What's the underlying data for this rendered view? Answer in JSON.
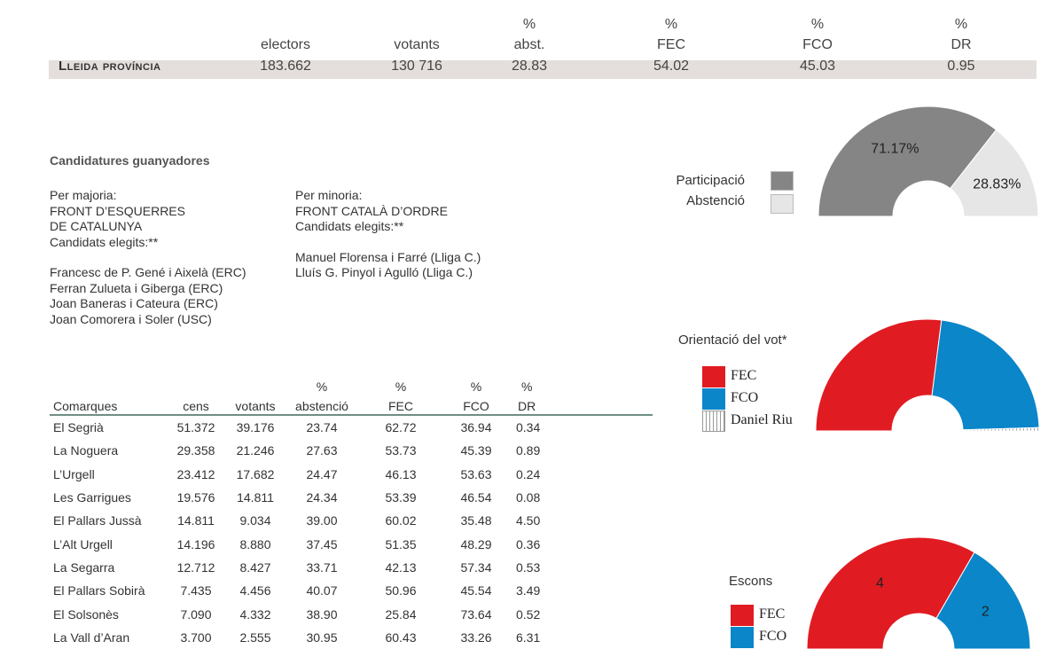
{
  "summary": {
    "title": "Lleida província",
    "columns": [
      {
        "pct": "",
        "label": "electors",
        "value": "183.662"
      },
      {
        "pct": "",
        "label": "votants",
        "value": "130 716"
      },
      {
        "pct": "%",
        "label": "abst.",
        "value": "28.83"
      },
      {
        "pct": "%",
        "label": "FEC",
        "value": "54.02"
      },
      {
        "pct": "%",
        "label": "FCO",
        "value": "45.03"
      },
      {
        "pct": "%",
        "label": "DR",
        "value": "0.95"
      }
    ]
  },
  "winners": {
    "title": "Candidatures guanyadores",
    "majority": {
      "heading": "Per majoria:",
      "party_line1": "FRONT D’ESQUERRES",
      "party_line2": "DE CATALUNYA",
      "elected_label": "Candidats elegits:**",
      "candidates": [
        "Francesc de P. Gené i Aixelà (ERC)",
        "Ferran Zulueta i Giberga (ERC)",
        "Joan Baneras i Cateura (ERC)",
        "Joan Comorera i Soler (USC)"
      ]
    },
    "minority": {
      "heading": "Per minoria:",
      "party_line1": "FRONT CATALÀ D’ORDRE",
      "elected_label": "Candidats elegits:**",
      "candidates": [
        "Manuel Florensa i Farré (Lliga C.)",
        "Lluís G. Pinyol i Agulló (Lliga C.)"
      ]
    }
  },
  "table": {
    "pct_headers": [
      "",
      "",
      "",
      "%",
      "%",
      "%",
      "%"
    ],
    "headers": [
      "Comarques",
      "cens",
      "votants",
      "abstenció",
      "FEC",
      "FCO",
      "DR"
    ],
    "rows": [
      [
        "El Segrià",
        "51.372",
        "39.176",
        "23.74",
        "62.72",
        "36.94",
        "0.34"
      ],
      [
        "La Noguera",
        "29.358",
        "21.246",
        "27.63",
        "53.73",
        "45.39",
        "0.89"
      ],
      [
        "L’Urgell",
        "23.412",
        "17.682",
        "24.47",
        "46.13",
        "53.63",
        "0.24"
      ],
      [
        "Les Garrigues",
        "19.576",
        "14.811",
        "24.34",
        "53.39",
        "46.54",
        "0.08"
      ],
      [
        "El Pallars Jussà",
        "14.811",
        "9.034",
        "39.00",
        "60.02",
        "35.48",
        "4.50"
      ],
      [
        "L’Alt Urgell",
        "14.196",
        "8.880",
        "37.45",
        "51.35",
        "48.29",
        "0.36"
      ],
      [
        "La Segarra",
        "12.712",
        "8.427",
        "33.71",
        "42.13",
        "57.34",
        "0.53"
      ],
      [
        "El Pallars Sobirà",
        "7.435",
        "4.456",
        "40.07",
        "50.96",
        "45.54",
        "3.49"
      ],
      [
        "El Solsonès",
        "7.090",
        "4.332",
        "38.90",
        "25.84",
        "73.64",
        "0.52"
      ],
      [
        "La Vall d’Aran",
        "3.700",
        "2.555",
        "30.95",
        "60.43",
        "33.26",
        "6.31"
      ]
    ]
  },
  "colors": {
    "participation": "#858585",
    "abstention": "#e6e6e6",
    "fec": "#e11b22",
    "fco": "#0a86c9",
    "dr_stripe": "#999999"
  },
  "chart_data": [
    {
      "type": "pie",
      "title": "",
      "legend": [
        "Participació",
        "Abstenció"
      ],
      "categories": [
        "Participació",
        "Abstenció"
      ],
      "values": [
        71.17,
        28.83
      ],
      "data_labels": [
        "71.17%",
        "28.83%"
      ],
      "shape": "half-donut"
    },
    {
      "type": "pie",
      "title": "Orientació del vot*",
      "legend": [
        "FEC",
        "FCO",
        "Daniel Riu"
      ],
      "categories": [
        "FEC",
        "FCO",
        "Daniel Riu"
      ],
      "values": [
        54.02,
        45.03,
        0.95
      ],
      "shape": "half-donut"
    },
    {
      "type": "pie",
      "title": "Escons",
      "legend": [
        "FEC",
        "FCO"
      ],
      "categories": [
        "FEC",
        "FCO"
      ],
      "values": [
        4,
        2
      ],
      "data_labels": [
        "4",
        "2"
      ],
      "shape": "half-donut"
    }
  ]
}
